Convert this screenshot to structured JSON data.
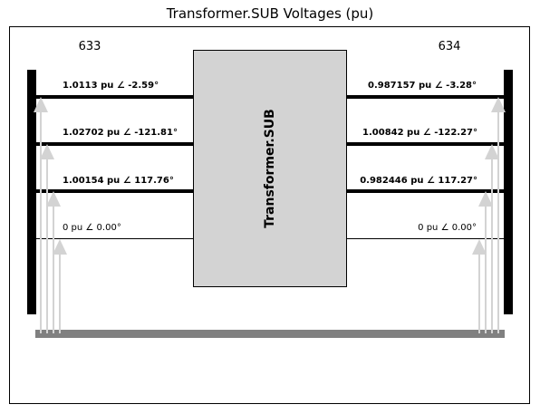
{
  "title": "Transformer.SUB Voltages (pu)",
  "bus_left": {
    "name": "633"
  },
  "bus_right": {
    "name": "634"
  },
  "transformer": {
    "name": "Transformer.SUB"
  },
  "left_phases": [
    {
      "label": "1.0113 pu ∠ -2.59°"
    },
    {
      "label": "1.02702 pu ∠ -121.81°"
    },
    {
      "label": "1.00154 pu ∠ 117.76°"
    },
    {
      "label": "0 pu ∠ 0.00°"
    }
  ],
  "right_phases": [
    {
      "label": "0.987157 pu ∠ -3.28°"
    },
    {
      "label": "1.00842 pu ∠ -122.27°"
    },
    {
      "label": "0.982446 pu ∠ 117.27°"
    },
    {
      "label": "0 pu ∠ 0.00°"
    }
  ],
  "colors": {
    "bus": "#000000",
    "transformer_fill": "#d3d3d3",
    "ground": "#808080",
    "arrow": "#d3d3d3"
  }
}
